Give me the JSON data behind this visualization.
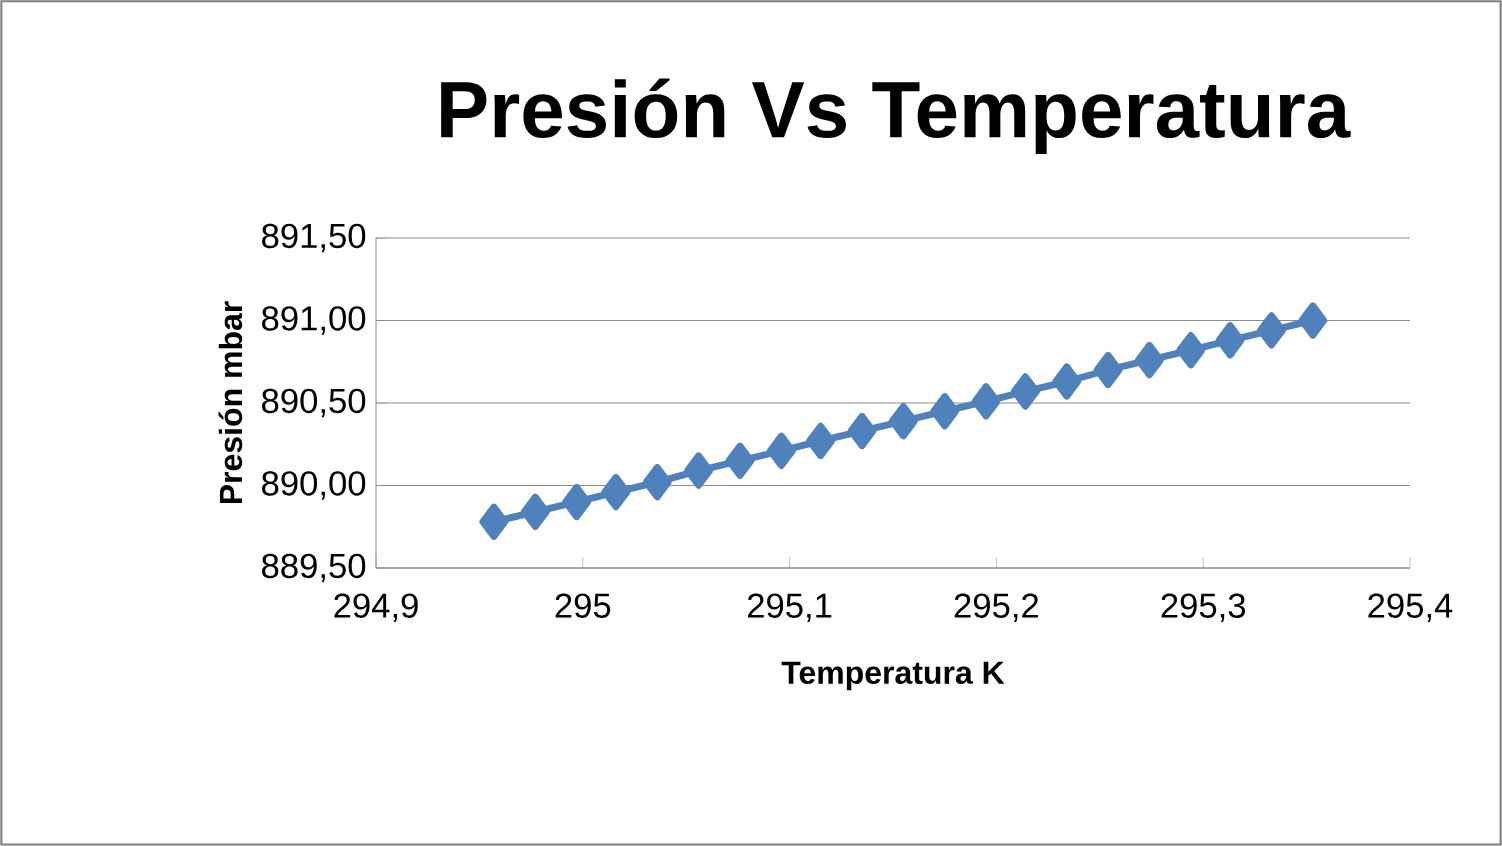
{
  "chart_data": {
    "type": "line",
    "title": "Presión Vs Temperatura",
    "xlabel": "Temperatura K",
    "ylabel": "Presión mbar",
    "x": [
      294.957,
      294.977,
      294.997,
      295.016,
      295.036,
      295.056,
      295.076,
      295.096,
      295.115,
      295.135,
      295.155,
      295.175,
      295.195,
      295.214,
      295.234,
      295.254,
      295.274,
      295.294,
      295.313,
      295.333,
      295.353
    ],
    "series": [
      {
        "color": "#4f81bd",
        "values": [
          889.78,
          889.84,
          889.9,
          889.96,
          890.02,
          890.09,
          890.15,
          890.21,
          890.27,
          890.33,
          890.39,
          890.45,
          890.51,
          890.57,
          890.63,
          890.7,
          890.76,
          890.82,
          890.88,
          890.94,
          891.0
        ]
      }
    ],
    "xlim": [
      294.9,
      295.4
    ],
    "ylim": [
      889.5,
      891.5
    ],
    "xticks": [
      {
        "value": 294.9,
        "label": "294,9"
      },
      295,
      {
        "value": 295.1,
        "label": "295,1"
      },
      {
        "value": 295.2,
        "label": "295,2"
      },
      {
        "value": 295.3,
        "label": "295,3"
      },
      {
        "value": 295.4,
        "label": "295,4"
      }
    ],
    "yticks": [
      {
        "value": 889.5,
        "label": "889,50"
      },
      {
        "value": 890.0,
        "label": "890,00"
      },
      {
        "value": 890.5,
        "label": "890,50"
      },
      {
        "value": 891.0,
        "label": "891,00"
      },
      {
        "value": 891.5,
        "label": "891,50"
      }
    ],
    "grid": "y",
    "marker": "diamond",
    "line_style": "solid"
  }
}
